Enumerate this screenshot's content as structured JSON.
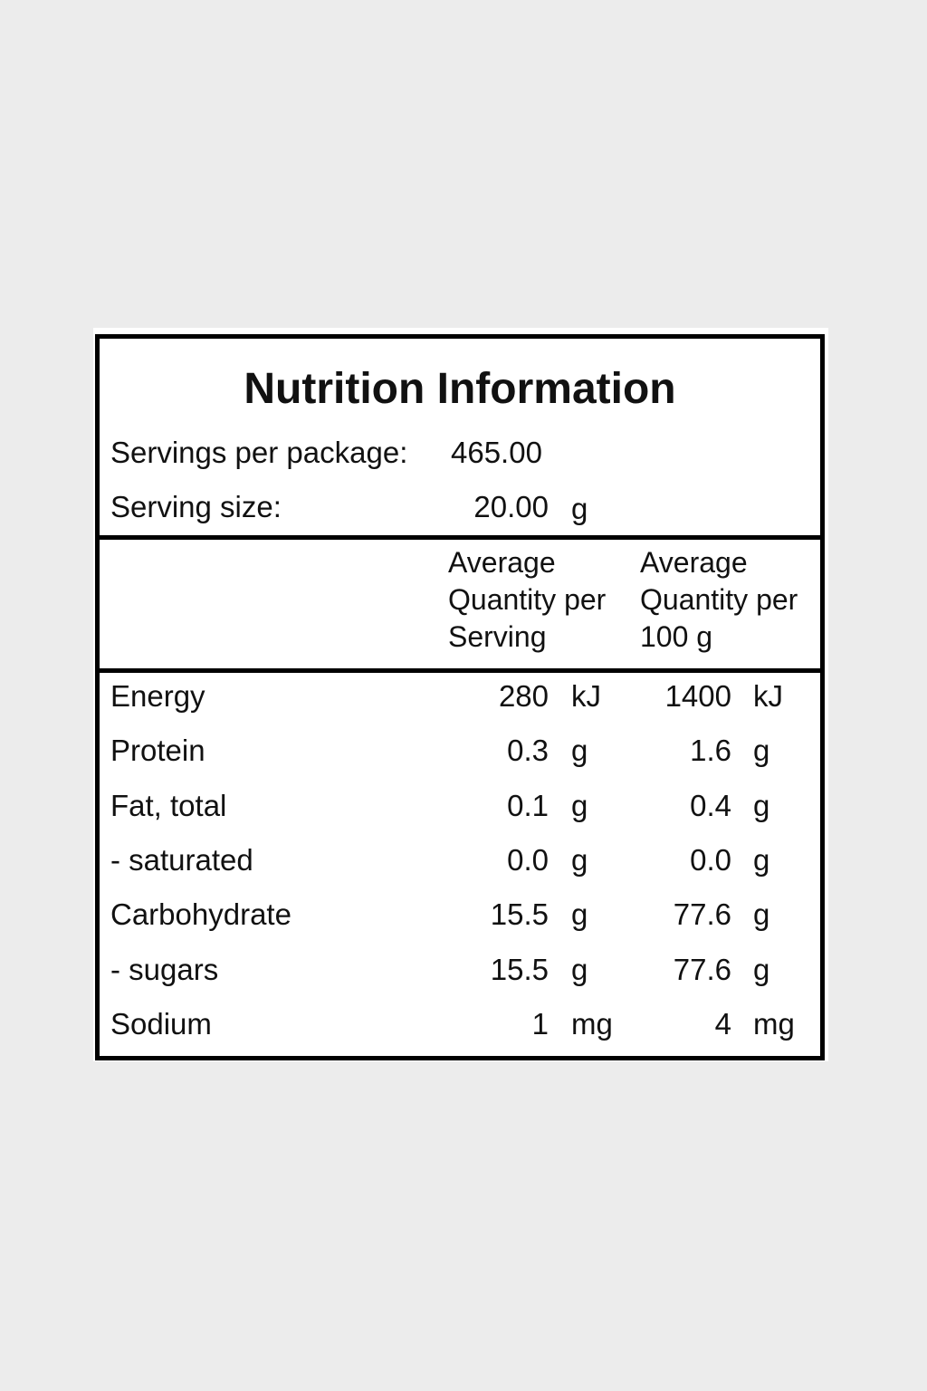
{
  "label": {
    "title": "Nutrition Information",
    "servings_per_package_label": "Servings per package:",
    "servings_per_package_value": "465.00",
    "serving_size_label": "Serving size:",
    "serving_size_value": "20.00",
    "serving_size_unit": "g",
    "col_per_serving": [
      "Average",
      "Quantity per",
      "Serving"
    ],
    "col_per_100g": [
      "Average",
      "Quantity per",
      "100 g"
    ],
    "rows": [
      {
        "name": "Energy",
        "serving": "280",
        "serving_unit": "kJ",
        "per100": "1400",
        "per100_unit": "kJ"
      },
      {
        "name": "Protein",
        "serving": "0.3",
        "serving_unit": "g",
        "per100": "1.6",
        "per100_unit": "g"
      },
      {
        "name": "Fat, total",
        "serving": "0.1",
        "serving_unit": "g",
        "per100": "0.4",
        "per100_unit": "g"
      },
      {
        "name": "- saturated",
        "serving": "0.0",
        "serving_unit": "g",
        "per100": "0.0",
        "per100_unit": "g"
      },
      {
        "name": "Carbohydrate",
        "serving": "15.5",
        "serving_unit": "g",
        "per100": "77.6",
        "per100_unit": "g"
      },
      {
        "name": "- sugars",
        "serving": "15.5",
        "serving_unit": "g",
        "per100": "77.6",
        "per100_unit": "g"
      },
      {
        "name": "Sodium",
        "serving": "1",
        "serving_unit": "mg",
        "per100": "4",
        "per100_unit": "mg"
      }
    ]
  }
}
